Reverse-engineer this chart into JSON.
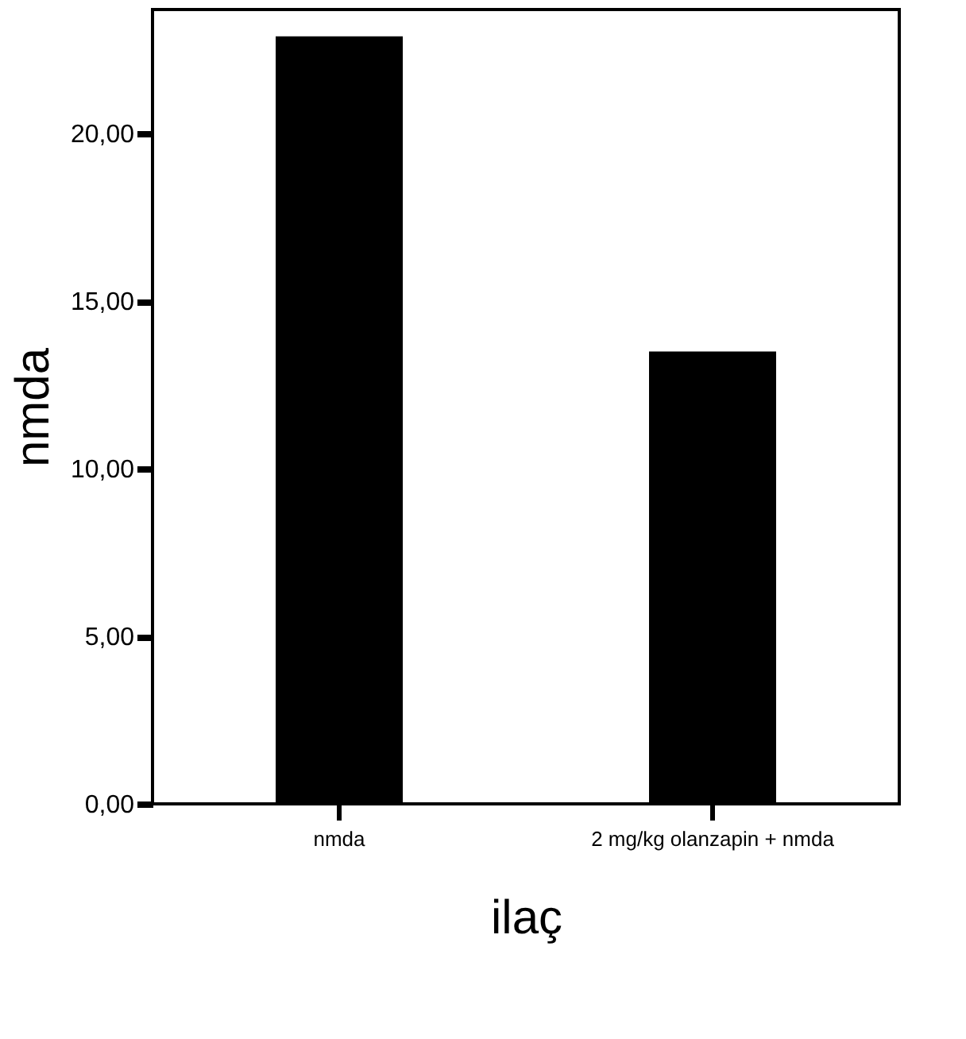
{
  "chart_data": {
    "type": "bar",
    "xlabel": "ilaç",
    "ylabel": "nmda",
    "categories": [
      "nmda",
      "2 mg/kg olanzapin + nmda"
    ],
    "values": [
      22.9,
      13.5
    ],
    "color": "#000000",
    "ylim": [
      0,
      23.7
    ],
    "yticks": [
      {
        "value": 0,
        "label": "0,00"
      },
      {
        "value": 5,
        "label": "5,00"
      },
      {
        "value": 10,
        "label": "10,00"
      },
      {
        "value": 15,
        "label": "15,00"
      },
      {
        "value": 20,
        "label": "20,00"
      }
    ],
    "grid": false
  }
}
